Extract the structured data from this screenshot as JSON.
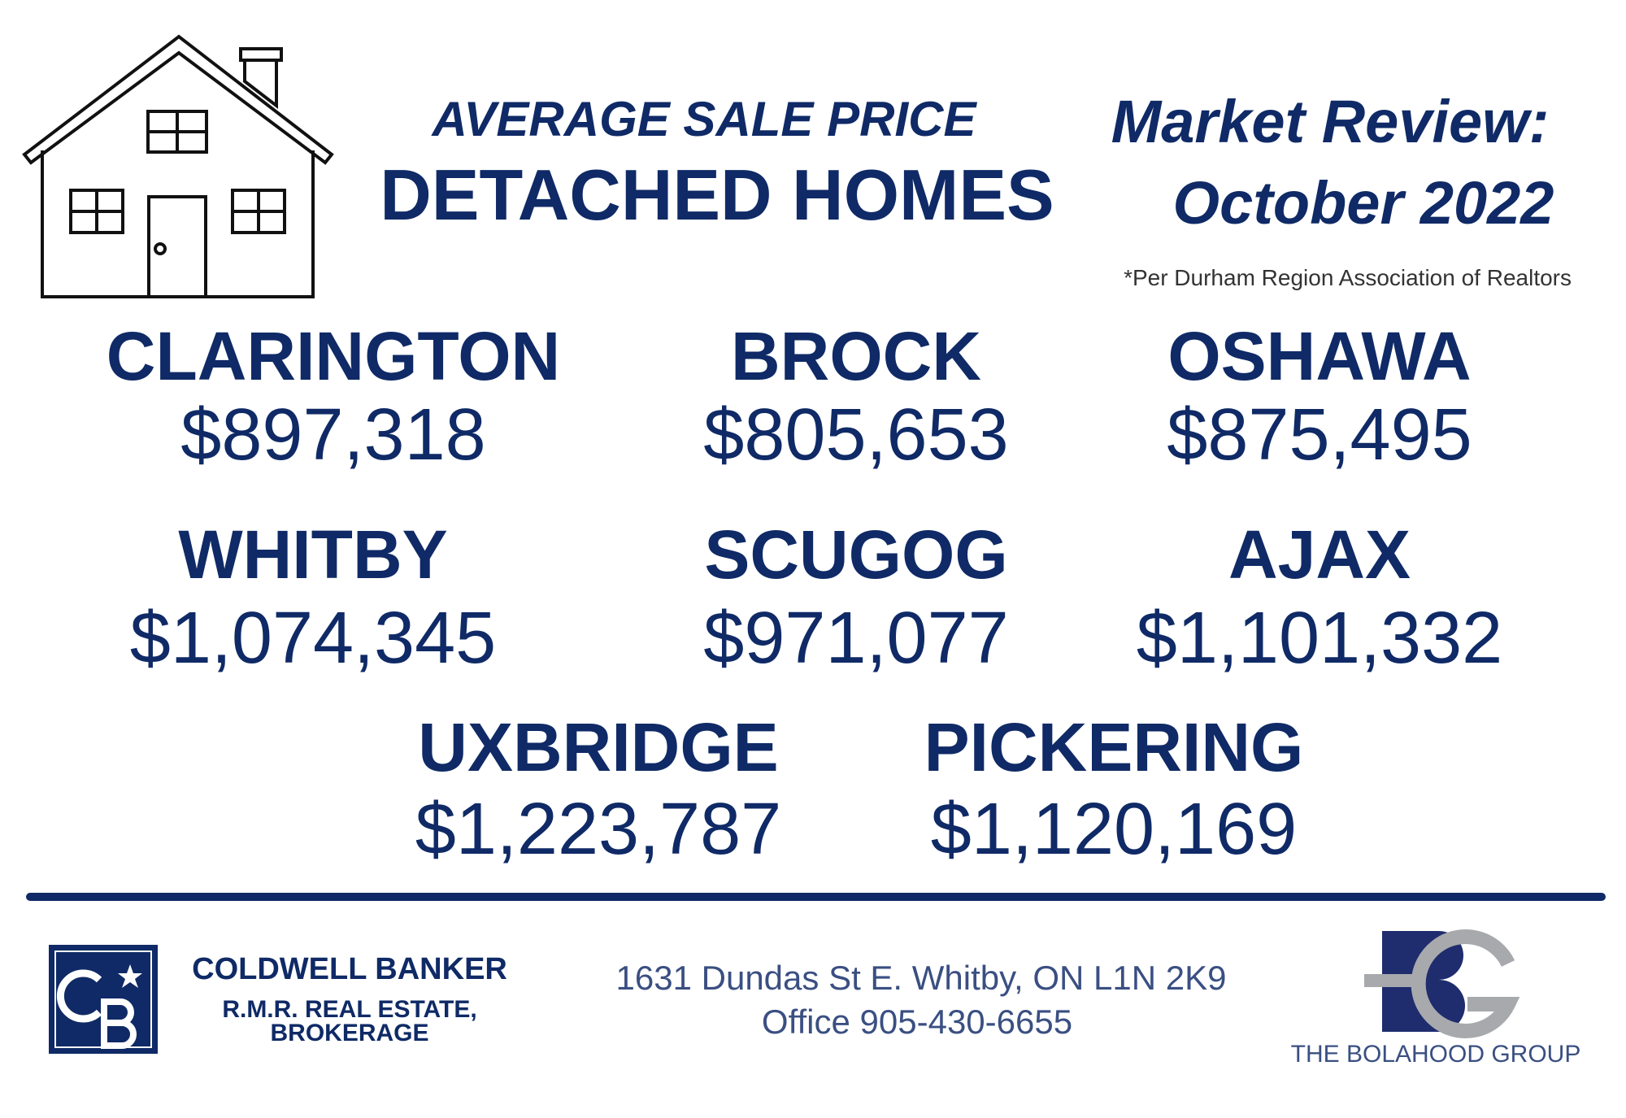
{
  "header": {
    "subtitle": "AVERAGE SALE PRICE",
    "title": "DETACHED HOMES",
    "review": [
      "Market Review:",
      "October 2022"
    ],
    "source": "*Per Durham Region Association of Realtors"
  },
  "regions": [
    {
      "name": "CLARINGTON",
      "price": "$897,318"
    },
    {
      "name": "BROCK",
      "price": "$805,653"
    },
    {
      "name": "OSHAWA",
      "price": "$875,495"
    },
    {
      "name": "WHITBY",
      "price": "$1,074,345"
    },
    {
      "name": "SCUGOG",
      "price": "$971,077"
    },
    {
      "name": "AJAX",
      "price": "$1,101,332"
    },
    {
      "name": "UXBRIDGE",
      "price": "$1,223,787"
    },
    {
      "name": "PICKERING",
      "price": "$1,120,169"
    }
  ],
  "footer": {
    "brokerage": [
      "COLDWELL BANKER",
      "R.M.R. REAL ESTATE,",
      "BROKERAGE"
    ],
    "address": [
      "1631 Dundas St E. Whitby, ON L1N 2K9",
      "Office 905-430-6655"
    ],
    "group": "THE BOLAHOOD GROUP"
  }
}
